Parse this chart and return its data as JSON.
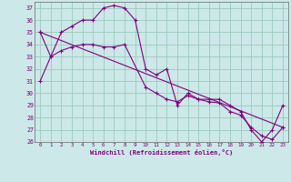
{
  "bg_color": "#cce8e8",
  "line_color": "#800080",
  "grid_color": "#99ccbb",
  "xlabel": "Windchill (Refroidissement éolien,°C)",
  "xlim": [
    -0.5,
    23.5
  ],
  "ylim": [
    26,
    37.5
  ],
  "yticks": [
    26,
    27,
    28,
    29,
    30,
    31,
    32,
    33,
    34,
    35,
    36,
    37
  ],
  "xticks": [
    0,
    1,
    2,
    3,
    4,
    5,
    6,
    7,
    8,
    9,
    10,
    11,
    12,
    13,
    14,
    15,
    16,
    17,
    18,
    19,
    20,
    21,
    22,
    23
  ],
  "line1_x": [
    0,
    1,
    2,
    3,
    4,
    5,
    6,
    7,
    8,
    9,
    10,
    11,
    12,
    13,
    14,
    15,
    16,
    17,
    18,
    19,
    20,
    21,
    22,
    23
  ],
  "line1_y": [
    31,
    33,
    35,
    35.5,
    36,
    36,
    37,
    37.2,
    37,
    36,
    32,
    31.5,
    32,
    29,
    30,
    29.5,
    29.5,
    29.5,
    29,
    28.5,
    27,
    26,
    27,
    29
  ],
  "line2_x": [
    0,
    1,
    2,
    3,
    4,
    5,
    6,
    7,
    8,
    10,
    11,
    12,
    13,
    14,
    15,
    16,
    17,
    18,
    19,
    20,
    21,
    22,
    23
  ],
  "line2_y": [
    35,
    33,
    33.5,
    33.8,
    34,
    34,
    33.8,
    33.8,
    34,
    30.5,
    30,
    29.5,
    29.3,
    29.8,
    29.5,
    29.3,
    29.2,
    28.5,
    28.2,
    27.2,
    26.5,
    26.2,
    27.2
  ],
  "line3_x": [
    0,
    23
  ],
  "line3_y": [
    35,
    27.2
  ]
}
